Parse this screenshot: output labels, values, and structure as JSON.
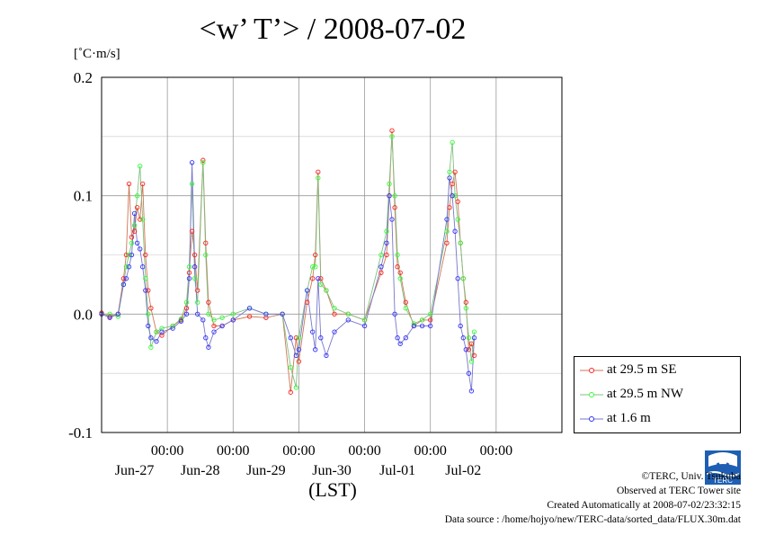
{
  "page": {
    "title": "<w’ T’> / 2008-07-02",
    "y_unit": "[˚C·m/s]",
    "x_axis_label": "(LST)",
    "credits": [
      "©TERC, Univ. Tsukuba",
      "Observed at TERC Tower site",
      "Created Automatically at 2008-07-02/23:32:15",
      "Data source : /home/hojyo/new/TERC-data/sorted_data/FLUX.30m.dat"
    ],
    "logo_text": "TERC"
  },
  "chart_data": {
    "type": "line",
    "title": "<w’ T’> / 2008-07-02",
    "xlabel": "(LST)",
    "ylabel": "[˚C·m/s]",
    "ylim": [
      -0.1,
      0.2
    ],
    "xlim": [
      "2008-06-26 00:00",
      "2008-07-03 00:00"
    ],
    "yticks": [
      -0.1,
      0.0,
      0.1,
      0.2
    ],
    "ytick_labels": [
      "-0.1",
      "0.0",
      "0.1",
      "0.2"
    ],
    "xticks": [
      {
        "time": "2008-06-27 00:00",
        "label": "00:00"
      },
      {
        "time": "2008-06-28 00:00",
        "label": "00:00"
      },
      {
        "time": "2008-06-29 00:00",
        "label": "00:00"
      },
      {
        "time": "2008-06-30 00:00",
        "label": "00:00"
      },
      {
        "time": "2008-07-01 00:00",
        "label": "00:00"
      },
      {
        "time": "2008-07-02 00:00",
        "label": "00:00"
      }
    ],
    "date_labels": [
      {
        "time": "2008-06-26 12:00",
        "label": "Jun-27"
      },
      {
        "time": "2008-06-27 12:00",
        "label": "Jun-28"
      },
      {
        "time": "2008-06-28 12:00",
        "label": "Jun-29"
      },
      {
        "time": "2008-06-29 12:00",
        "label": "Jun-30"
      },
      {
        "time": "2008-06-30 12:00",
        "label": "Jul-01"
      },
      {
        "time": "2008-07-01 12:00",
        "label": "Jul-02"
      }
    ],
    "grid": true,
    "legend_position": "bottom-right, outside plot",
    "series": [
      {
        "name": "at 29.5 m SE",
        "color": "#ff2020",
        "points": [
          [
            "2008-06-26 00:00",
            0.001
          ],
          [
            "2008-06-26 03:00",
            -0.002
          ],
          [
            "2008-06-26 06:00",
            0.0
          ],
          [
            "2008-06-26 08:00",
            0.03
          ],
          [
            "2008-06-26 09:00",
            0.05
          ],
          [
            "2008-06-26 10:00",
            0.11
          ],
          [
            "2008-06-26 11:00",
            0.065
          ],
          [
            "2008-06-26 12:00",
            0.07
          ],
          [
            "2008-06-26 13:00",
            0.09
          ],
          [
            "2008-06-26 14:00",
            0.08
          ],
          [
            "2008-06-26 15:00",
            0.11
          ],
          [
            "2008-06-26 16:00",
            0.05
          ],
          [
            "2008-06-26 17:00",
            0.02
          ],
          [
            "2008-06-26 18:00",
            0.005
          ],
          [
            "2008-06-26 20:00",
            -0.015
          ],
          [
            "2008-06-26 22:00",
            -0.018
          ],
          [
            "2008-06-27 02:00",
            -0.01
          ],
          [
            "2008-06-27 05:00",
            -0.005
          ],
          [
            "2008-06-27 07:00",
            0.005
          ],
          [
            "2008-06-27 08:00",
            0.035
          ],
          [
            "2008-06-27 09:00",
            0.07
          ],
          [
            "2008-06-27 10:00",
            0.05
          ],
          [
            "2008-06-27 11:00",
            0.02
          ],
          [
            "2008-06-27 13:00",
            0.13
          ],
          [
            "2008-06-27 14:00",
            0.06
          ],
          [
            "2008-06-27 15:00",
            0.01
          ],
          [
            "2008-06-27 17:00",
            -0.01
          ],
          [
            "2008-06-27 20:00",
            -0.01
          ],
          [
            "2008-06-28 00:00",
            -0.005
          ],
          [
            "2008-06-28 06:00",
            -0.002
          ],
          [
            "2008-06-28 12:00",
            -0.003
          ],
          [
            "2008-06-28 18:00",
            0.0
          ],
          [
            "2008-06-28 21:00",
            -0.066
          ],
          [
            "2008-06-28 23:00",
            -0.02
          ],
          [
            "2008-06-29 00:00",
            -0.04
          ],
          [
            "2008-06-29 03:00",
            0.01
          ],
          [
            "2008-06-29 05:00",
            0.03
          ],
          [
            "2008-06-29 06:00",
            0.05
          ],
          [
            "2008-06-29 07:00",
            0.12
          ],
          [
            "2008-06-29 08:00",
            0.03
          ],
          [
            "2008-06-29 10:00",
            0.02
          ],
          [
            "2008-06-29 13:00",
            0.0
          ],
          [
            "2008-06-29 18:00",
            0.0
          ],
          [
            "2008-06-30 00:00",
            -0.005
          ],
          [
            "2008-06-30 06:00",
            0.035
          ],
          [
            "2008-06-30 08:00",
            0.05
          ],
          [
            "2008-06-30 09:00",
            0.1
          ],
          [
            "2008-06-30 10:00",
            0.155
          ],
          [
            "2008-06-30 11:00",
            0.09
          ],
          [
            "2008-06-30 12:00",
            0.04
          ],
          [
            "2008-06-30 13:00",
            0.035
          ],
          [
            "2008-06-30 15:00",
            0.01
          ],
          [
            "2008-06-30 18:00",
            -0.01
          ],
          [
            "2008-06-30 21:00",
            -0.005
          ],
          [
            "2008-07-01 00:00",
            -0.005
          ],
          [
            "2008-07-01 06:00",
            0.06
          ],
          [
            "2008-07-01 07:00",
            0.09
          ],
          [
            "2008-07-01 08:00",
            0.11
          ],
          [
            "2008-07-01 09:00",
            0.12
          ],
          [
            "2008-07-01 10:00",
            0.095
          ],
          [
            "2008-07-01 11:00",
            0.06
          ],
          [
            "2008-07-01 12:00",
            0.03
          ],
          [
            "2008-07-01 13:00",
            0.01
          ],
          [
            "2008-07-01 14:00",
            -0.03
          ],
          [
            "2008-07-01 15:00",
            -0.025
          ],
          [
            "2008-07-01 16:00",
            -0.035
          ]
        ]
      },
      {
        "name": "at 29.5 m NW",
        "color": "#30ff30",
        "points": [
          [
            "2008-06-26 00:00",
            0.0
          ],
          [
            "2008-06-26 03:00",
            0.0
          ],
          [
            "2008-06-26 06:00",
            -0.002
          ],
          [
            "2008-06-26 08:00",
            0.025
          ],
          [
            "2008-06-26 09:00",
            0.04
          ],
          [
            "2008-06-26 10:00",
            0.05
          ],
          [
            "2008-06-26 11:00",
            0.06
          ],
          [
            "2008-06-26 12:00",
            0.075
          ],
          [
            "2008-06-26 13:00",
            0.1
          ],
          [
            "2008-06-26 14:00",
            0.125
          ],
          [
            "2008-06-26 15:00",
            0.08
          ],
          [
            "2008-06-26 16:00",
            0.03
          ],
          [
            "2008-06-26 17:00",
            0.0
          ],
          [
            "2008-06-26 18:00",
            -0.028
          ],
          [
            "2008-06-26 20:00",
            -0.015
          ],
          [
            "2008-06-26 22:00",
            -0.012
          ],
          [
            "2008-06-27 02:00",
            -0.01
          ],
          [
            "2008-06-27 05:00",
            -0.004
          ],
          [
            "2008-06-27 07:00",
            0.01
          ],
          [
            "2008-06-27 08:00",
            0.04
          ],
          [
            "2008-06-27 09:00",
            0.11
          ],
          [
            "2008-06-27 10:00",
            0.03
          ],
          [
            "2008-06-27 11:00",
            0.01
          ],
          [
            "2008-06-27 13:00",
            0.128
          ],
          [
            "2008-06-27 14:00",
            0.05
          ],
          [
            "2008-06-27 15:00",
            0.0
          ],
          [
            "2008-06-27 17:00",
            -0.005
          ],
          [
            "2008-06-27 20:00",
            -0.003
          ],
          [
            "2008-06-28 00:00",
            0.0
          ],
          [
            "2008-06-28 06:00",
            0.005
          ],
          [
            "2008-06-28 12:00",
            0.0
          ],
          [
            "2008-06-28 18:00",
            0.0
          ],
          [
            "2008-06-28 21:00",
            -0.045
          ],
          [
            "2008-06-28 23:00",
            -0.062
          ],
          [
            "2008-06-29 00:00",
            -0.02
          ],
          [
            "2008-06-29 03:00",
            0.02
          ],
          [
            "2008-06-29 05:00",
            0.04
          ],
          [
            "2008-06-29 06:00",
            0.04
          ],
          [
            "2008-06-29 07:00",
            0.115
          ],
          [
            "2008-06-29 08:00",
            0.025
          ],
          [
            "2008-06-29 10:00",
            0.02
          ],
          [
            "2008-06-29 13:00",
            0.005
          ],
          [
            "2008-06-29 18:00",
            0.0
          ],
          [
            "2008-06-30 00:00",
            -0.005
          ],
          [
            "2008-06-30 06:00",
            0.05
          ],
          [
            "2008-06-30 08:00",
            0.07
          ],
          [
            "2008-06-30 09:00",
            0.11
          ],
          [
            "2008-06-30 10:00",
            0.15
          ],
          [
            "2008-06-30 11:00",
            0.1
          ],
          [
            "2008-06-30 12:00",
            0.05
          ],
          [
            "2008-06-30 13:00",
            0.03
          ],
          [
            "2008-06-30 15:00",
            0.005
          ],
          [
            "2008-06-30 18:00",
            -0.008
          ],
          [
            "2008-06-30 21:00",
            -0.005
          ],
          [
            "2008-07-01 00:00",
            0.0
          ],
          [
            "2008-07-01 06:00",
            0.07
          ],
          [
            "2008-07-01 07:00",
            0.12
          ],
          [
            "2008-07-01 08:00",
            0.145
          ],
          [
            "2008-07-01 09:00",
            0.1
          ],
          [
            "2008-07-01 10:00",
            0.08
          ],
          [
            "2008-07-01 11:00",
            0.06
          ],
          [
            "2008-07-01 12:00",
            0.03
          ],
          [
            "2008-07-01 13:00",
            0.005
          ],
          [
            "2008-07-01 14:00",
            -0.02
          ],
          [
            "2008-07-01 15:00",
            -0.04
          ],
          [
            "2008-07-01 16:00",
            -0.015
          ]
        ]
      },
      {
        "name": "at 1.6 m",
        "color": "#3030ff",
        "points": [
          [
            "2008-06-26 00:00",
            0.0
          ],
          [
            "2008-06-26 03:00",
            -0.003
          ],
          [
            "2008-06-26 06:00",
            0.0
          ],
          [
            "2008-06-26 08:00",
            0.025
          ],
          [
            "2008-06-26 09:00",
            0.03
          ],
          [
            "2008-06-26 10:00",
            0.04
          ],
          [
            "2008-06-26 11:00",
            0.05
          ],
          [
            "2008-06-26 12:00",
            0.085
          ],
          [
            "2008-06-26 13:00",
            0.06
          ],
          [
            "2008-06-26 14:00",
            0.055
          ],
          [
            "2008-06-26 15:00",
            0.04
          ],
          [
            "2008-06-26 16:00",
            0.02
          ],
          [
            "2008-06-26 17:00",
            -0.01
          ],
          [
            "2008-06-26 18:00",
            -0.02
          ],
          [
            "2008-06-26 20:00",
            -0.023
          ],
          [
            "2008-06-26 22:00",
            -0.015
          ],
          [
            "2008-06-27 02:00",
            -0.012
          ],
          [
            "2008-06-27 05:00",
            -0.006
          ],
          [
            "2008-06-27 07:00",
            0.0
          ],
          [
            "2008-06-27 08:00",
            0.03
          ],
          [
            "2008-06-27 09:00",
            0.128
          ],
          [
            "2008-06-27 10:00",
            0.04
          ],
          [
            "2008-06-27 11:00",
            0.0
          ],
          [
            "2008-06-27 13:00",
            -0.005
          ],
          [
            "2008-06-27 14:00",
            -0.02
          ],
          [
            "2008-06-27 15:00",
            -0.028
          ],
          [
            "2008-06-27 17:00",
            -0.015
          ],
          [
            "2008-06-27 20:00",
            -0.01
          ],
          [
            "2008-06-28 00:00",
            -0.005
          ],
          [
            "2008-06-28 06:00",
            0.005
          ],
          [
            "2008-06-28 12:00",
            0.0
          ],
          [
            "2008-06-28 18:00",
            0.0
          ],
          [
            "2008-06-28 21:00",
            -0.02
          ],
          [
            "2008-06-28 23:00",
            -0.035
          ],
          [
            "2008-06-29 00:00",
            -0.03
          ],
          [
            "2008-06-29 03:00",
            0.02
          ],
          [
            "2008-06-29 05:00",
            -0.015
          ],
          [
            "2008-06-29 06:00",
            -0.03
          ],
          [
            "2008-06-29 07:00",
            0.03
          ],
          [
            "2008-06-29 08:00",
            -0.02
          ],
          [
            "2008-06-29 10:00",
            -0.035
          ],
          [
            "2008-06-29 13:00",
            -0.015
          ],
          [
            "2008-06-29 18:00",
            -0.005
          ],
          [
            "2008-06-30 00:00",
            -0.01
          ],
          [
            "2008-06-30 06:00",
            0.04
          ],
          [
            "2008-06-30 08:00",
            0.06
          ],
          [
            "2008-06-30 09:00",
            0.1
          ],
          [
            "2008-06-30 10:00",
            0.08
          ],
          [
            "2008-06-30 11:00",
            0.0
          ],
          [
            "2008-06-30 12:00",
            -0.02
          ],
          [
            "2008-06-30 13:00",
            -0.025
          ],
          [
            "2008-06-30 15:00",
            -0.02
          ],
          [
            "2008-06-30 18:00",
            -0.01
          ],
          [
            "2008-06-30 21:00",
            -0.01
          ],
          [
            "2008-07-01 00:00",
            -0.01
          ],
          [
            "2008-07-01 06:00",
            0.08
          ],
          [
            "2008-07-01 07:00",
            0.115
          ],
          [
            "2008-07-01 08:00",
            0.1
          ],
          [
            "2008-07-01 09:00",
            0.07
          ],
          [
            "2008-07-01 10:00",
            0.03
          ],
          [
            "2008-07-01 11:00",
            -0.01
          ],
          [
            "2008-07-01 12:00",
            -0.02
          ],
          [
            "2008-07-01 13:00",
            -0.03
          ],
          [
            "2008-07-01 14:00",
            -0.05
          ],
          [
            "2008-07-01 15:00",
            -0.065
          ],
          [
            "2008-07-01 16:00",
            -0.02
          ]
        ]
      }
    ]
  }
}
